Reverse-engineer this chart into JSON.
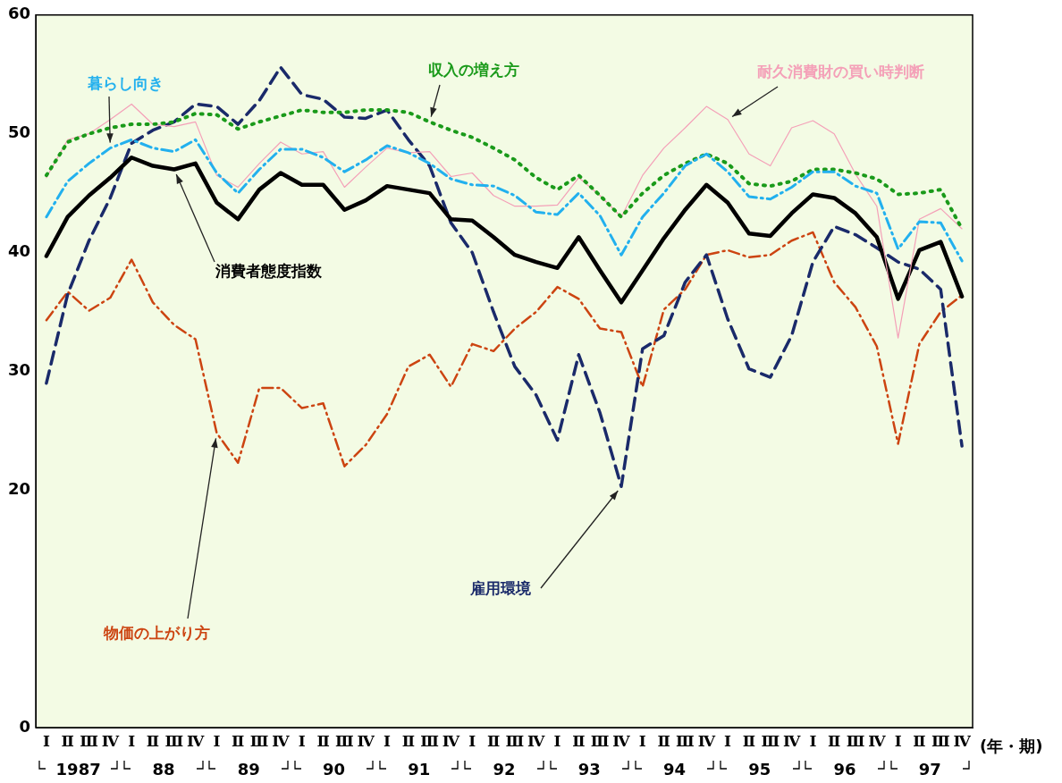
{
  "chart_data": {
    "type": "line",
    "categories": [
      "Ⅰ",
      "Ⅱ",
      "Ⅲ",
      "Ⅳ",
      "Ⅰ",
      "Ⅱ",
      "Ⅲ",
      "Ⅳ",
      "Ⅰ",
      "Ⅱ",
      "Ⅲ",
      "Ⅳ",
      "Ⅰ",
      "Ⅱ",
      "Ⅲ",
      "Ⅳ",
      "Ⅰ",
      "Ⅱ",
      "Ⅲ",
      "Ⅳ",
      "Ⅰ",
      "Ⅱ",
      "Ⅲ",
      "Ⅳ",
      "Ⅰ",
      "Ⅱ",
      "Ⅲ",
      "Ⅳ",
      "Ⅰ",
      "Ⅱ",
      "Ⅲ",
      "Ⅳ",
      "Ⅰ",
      "Ⅱ",
      "Ⅲ",
      "Ⅳ",
      "Ⅰ",
      "Ⅱ",
      "Ⅲ",
      "Ⅳ",
      "Ⅰ",
      "Ⅱ",
      "Ⅲ",
      "Ⅳ"
    ],
    "xlabel": "(年・期)",
    "ylim": [
      0,
      60
    ],
    "yticks": [
      0,
      20,
      30,
      40,
      50,
      60
    ],
    "grid": false,
    "legend": false,
    "marker": "none",
    "series": [
      {
        "name": "暮らし向き",
        "color": "#22b0ee",
        "line_style": "dashdot",
        "values": [
          43,
          46,
          47.5,
          48.8,
          49.5,
          48.8,
          48.5,
          49.5,
          46.7,
          45,
          47,
          48.7,
          48.7,
          48,
          46.8,
          47.8,
          49,
          48.4,
          47.5,
          46.2,
          45.7,
          45.6,
          44.8,
          43.4,
          43.2,
          45,
          43.1,
          39.8,
          43,
          45,
          47.3,
          48.3,
          46.8,
          44.7,
          44.5,
          45.5,
          46.8,
          46.8,
          45.6,
          45,
          40.3,
          42.6,
          42.5,
          39.3
        ]
      },
      {
        "name": "収入の増え方",
        "color": "#1a9a1a",
        "line_style": "dotted",
        "values": [
          46.5,
          49.3,
          50,
          50.5,
          50.8,
          50.8,
          51,
          51.7,
          51.6,
          50.4,
          51,
          51.5,
          52,
          51.8,
          51.8,
          52,
          52,
          51.8,
          51,
          50.3,
          49.7,
          48.8,
          47.8,
          46.3,
          45.3,
          46.5,
          44.8,
          43,
          45,
          46.5,
          47.5,
          48.3,
          47.5,
          45.8,
          45.6,
          46,
          47,
          47,
          46.7,
          46.2,
          44.9,
          45,
          45.3,
          42
        ]
      },
      {
        "name": "耐久消費財の買い時判断",
        "color": "#f4a0b8",
        "line_style": "solid",
        "values": [
          46.3,
          49.5,
          50,
          51.2,
          52.5,
          50.8,
          50.6,
          51,
          46.5,
          45.5,
          47.5,
          49.3,
          48.3,
          48.5,
          45.5,
          47.2,
          48.8,
          48.4,
          48.5,
          46.4,
          46.7,
          44.8,
          43.9,
          43.9,
          44,
          46.3,
          44.8,
          43,
          46.5,
          48.8,
          50.5,
          52.3,
          51.2,
          48.3,
          47.3,
          50.5,
          51.1,
          50,
          46.6,
          43.9,
          32.8,
          42.8,
          43.7,
          42
        ]
      },
      {
        "name": "消費者態度指数",
        "color": "#000000",
        "line_style": "solid",
        "values": [
          39.7,
          43,
          44.8,
          46.3,
          48,
          47.3,
          47,
          47.5,
          44.2,
          42.8,
          45.3,
          46.7,
          45.7,
          45.7,
          43.6,
          44.4,
          45.6,
          45.3,
          45,
          42.8,
          42.7,
          41.3,
          39.8,
          39.2,
          38.7,
          41.3,
          38.5,
          35.8,
          38.5,
          41.2,
          43.6,
          45.7,
          44.2,
          41.6,
          41.4,
          43.3,
          44.9,
          44.6,
          43.3,
          41.3,
          36.1,
          40.2,
          40.9,
          36.3
        ]
      },
      {
        "name": "雇用環境",
        "color": "#1a2a6a",
        "line_style": "dashed",
        "values": [
          29,
          36.5,
          41,
          44.6,
          49.2,
          50.3,
          51,
          52.5,
          52.3,
          50.8,
          52.8,
          55.6,
          53.3,
          52.9,
          51.4,
          51.3,
          52,
          49.5,
          47.3,
          42.5,
          40,
          35,
          30.4,
          28,
          24.2,
          31.4,
          26.5,
          20.3,
          31.9,
          33,
          37.5,
          39.8,
          34.4,
          30.2,
          29.5,
          33,
          39.2,
          42.2,
          41.5,
          40.4,
          39.2,
          38.6,
          36.9,
          23.7
        ]
      },
      {
        "name": "物価の上がり方",
        "color": "#cc4411",
        "line_style": "dashdot",
        "values": [
          34.3,
          36.7,
          35.1,
          36.2,
          39.4,
          35.8,
          33.9,
          32.7,
          24.8,
          22.3,
          28.6,
          28.6,
          26.9,
          27.3,
          22,
          23.8,
          26.4,
          30.4,
          31.4,
          28.7,
          32.3,
          31.7,
          33.6,
          35,
          37.1,
          36.1,
          33.6,
          33.3,
          28.7,
          35.2,
          36.9,
          39.8,
          40.2,
          39.6,
          39.8,
          41,
          41.7,
          37.5,
          35.4,
          32.1,
          23.9,
          32.3,
          35,
          36.4
        ]
      }
    ],
    "annotations": [
      "1987",
      "88",
      "89",
      "90",
      "91",
      "92",
      "93",
      "94",
      "95",
      "96",
      "97"
    ]
  }
}
